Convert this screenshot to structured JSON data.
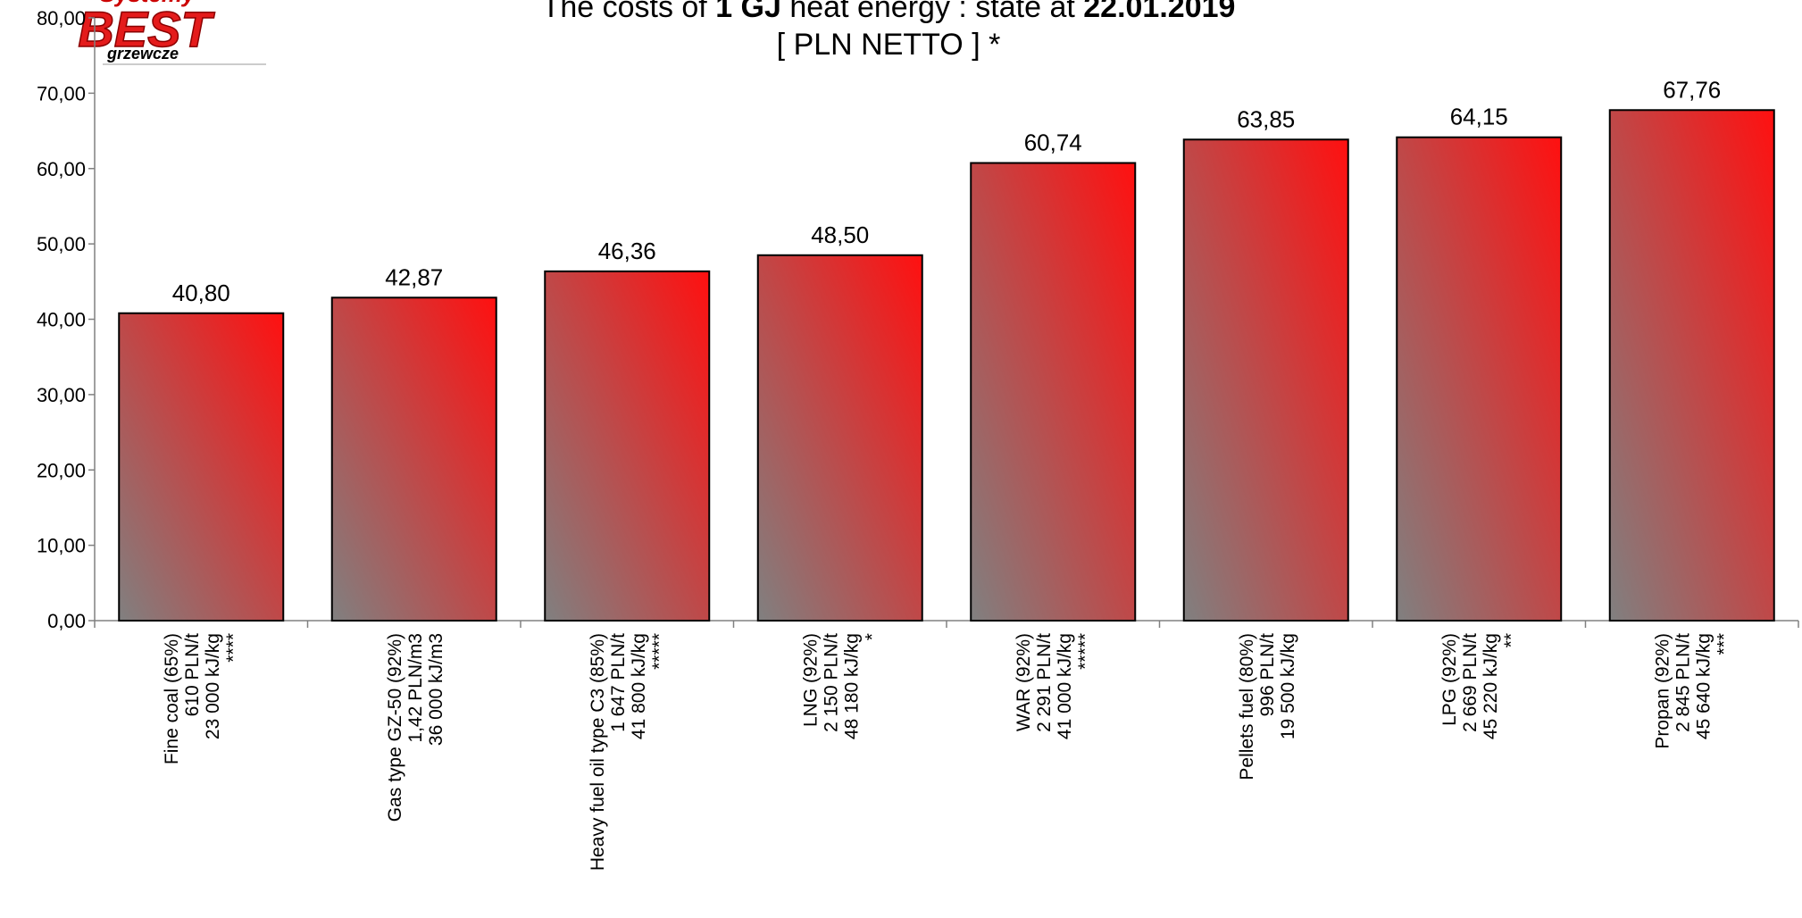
{
  "logo": {
    "top_text": "Systemy",
    "main_text": "BEST",
    "bottom_text": "grzewcze"
  },
  "title": {
    "line1_part1": "The costs of ",
    "line1_bold1": "1 GJ",
    "line1_part2": " heat energy : state at ",
    "line1_bold2": "22.01.2019",
    "line2": "[ PLN NETTO ] *"
  },
  "colors": {
    "bar_gradient_start": "#808080",
    "bar_gradient_end": "#ff1010",
    "bar_stroke": "#000000",
    "axis": "#808080",
    "text": "#000000"
  },
  "chart_data": {
    "type": "bar",
    "ylim": [
      0,
      80
    ],
    "yticks": [
      "0,00",
      "10,00",
      "20,00",
      "30,00",
      "40,00",
      "50,00",
      "60,00",
      "70,00",
      "80,00"
    ],
    "ytick_values": [
      0,
      10,
      20,
      30,
      40,
      50,
      60,
      70,
      80
    ],
    "grid": false,
    "legend": "none",
    "categories": [
      {
        "lines": [
          "Fine coal (65%)",
          "610 PLN/t",
          "23 000 kJ/kg",
          "****"
        ]
      },
      {
        "lines": [
          "Gas type GZ-50 (92%)",
          "1,42 PLN/m3",
          "36 000 kJ/m3"
        ]
      },
      {
        "lines": [
          "Heavy fuel oil type C3 (85%)",
          "1 647 PLN/t",
          "41 800 kJ/kg",
          "*****"
        ]
      },
      {
        "lines": [
          "LNG (92%)",
          "2 150 PLN/t",
          "48 180 kJ/kg",
          "*"
        ]
      },
      {
        "lines": [
          "WAR (92%)",
          "2 291 PLN/t",
          "41 000 kJ/kg",
          "*****"
        ]
      },
      {
        "lines": [
          "Pellets fuel (80%)",
          "996 PLN/t",
          "19 500 kJ/kg"
        ]
      },
      {
        "lines": [
          "LPG (92%)",
          "2 669 PLN/t",
          "45 220 kJ/kg",
          "**"
        ]
      },
      {
        "lines": [
          "Propan (92%)",
          "2 845 PLN/t",
          "45 640 kJ/kg",
          "***"
        ]
      }
    ],
    "values": [
      40.8,
      42.87,
      46.36,
      48.5,
      60.74,
      63.85,
      64.15,
      67.76
    ],
    "value_labels": [
      "40,80",
      "42,87",
      "46,36",
      "48,50",
      "60,74",
      "63,85",
      "64,15",
      "67,76"
    ]
  }
}
